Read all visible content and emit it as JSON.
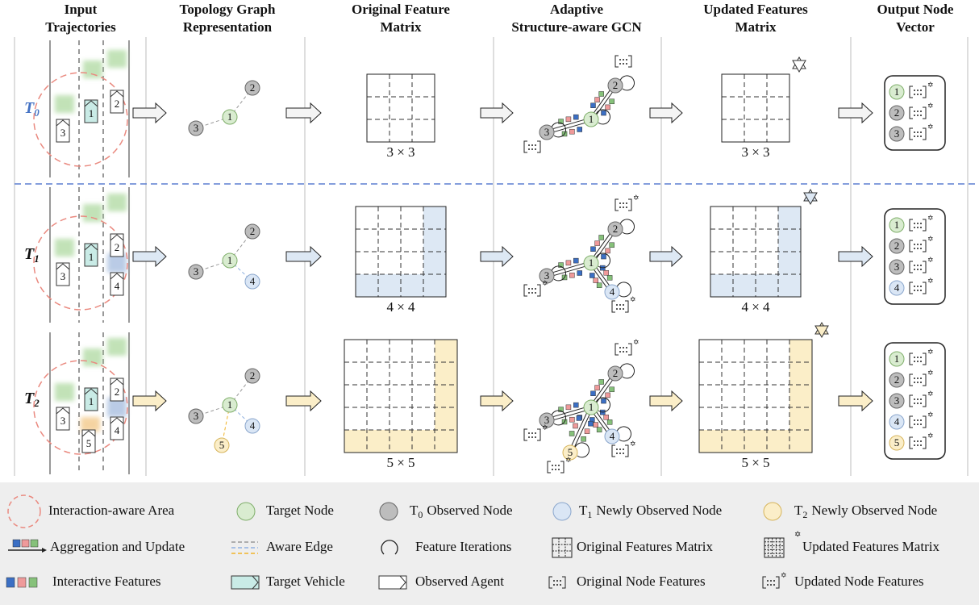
{
  "headers": [
    [
      "Input",
      "Trajectories"
    ],
    [
      "Topology Graph",
      "Representation"
    ],
    [
      "Original Feature",
      "Matrix"
    ],
    [
      "Adaptive",
      "Structure-aware GCN"
    ],
    [
      "Updated Features",
      "Matrix"
    ],
    [
      "Output Node",
      "Vector"
    ]
  ],
  "rows": [
    {
      "symbol": "T",
      "index": "0",
      "nodes": [
        "1",
        "2",
        "3"
      ],
      "original_size": "3 × 3",
      "updated_size": "3 × 3"
    },
    {
      "symbol": "T",
      "index": "1",
      "nodes": [
        "1",
        "2",
        "3",
        "4"
      ],
      "original_size": "4 × 4",
      "updated_size": "4 × 4"
    },
    {
      "symbol": "T",
      "index": "2",
      "nodes": [
        "1",
        "2",
        "3",
        "4",
        "5"
      ],
      "original_size": "5 × 5",
      "updated_size": "5 × 5"
    }
  ],
  "legend": [
    {
      "label": "Interaction-aware Area"
    },
    {
      "label": "Target Node"
    },
    {
      "prefix": "T",
      "index": "0",
      "label": "Observed Node"
    },
    {
      "prefix": "T",
      "index": "1",
      "label": "Newly Observed Node"
    },
    {
      "prefix": "T",
      "index": "2",
      "label": "Newly Observed Node"
    },
    {
      "label": "Aggregation and Update"
    },
    {
      "label": "Aware Edge"
    },
    {
      "label": "Feature Iterations"
    },
    {
      "label": "Original Features Matrix"
    },
    {
      "label": "Updated Features Matrix"
    },
    {
      "label": "Interactive Features"
    },
    {
      "label": "Target Vehicle"
    },
    {
      "label": "Observed Agent"
    },
    {
      "label": "Original Node Features"
    },
    {
      "label": "Updated Node Features"
    }
  ]
}
